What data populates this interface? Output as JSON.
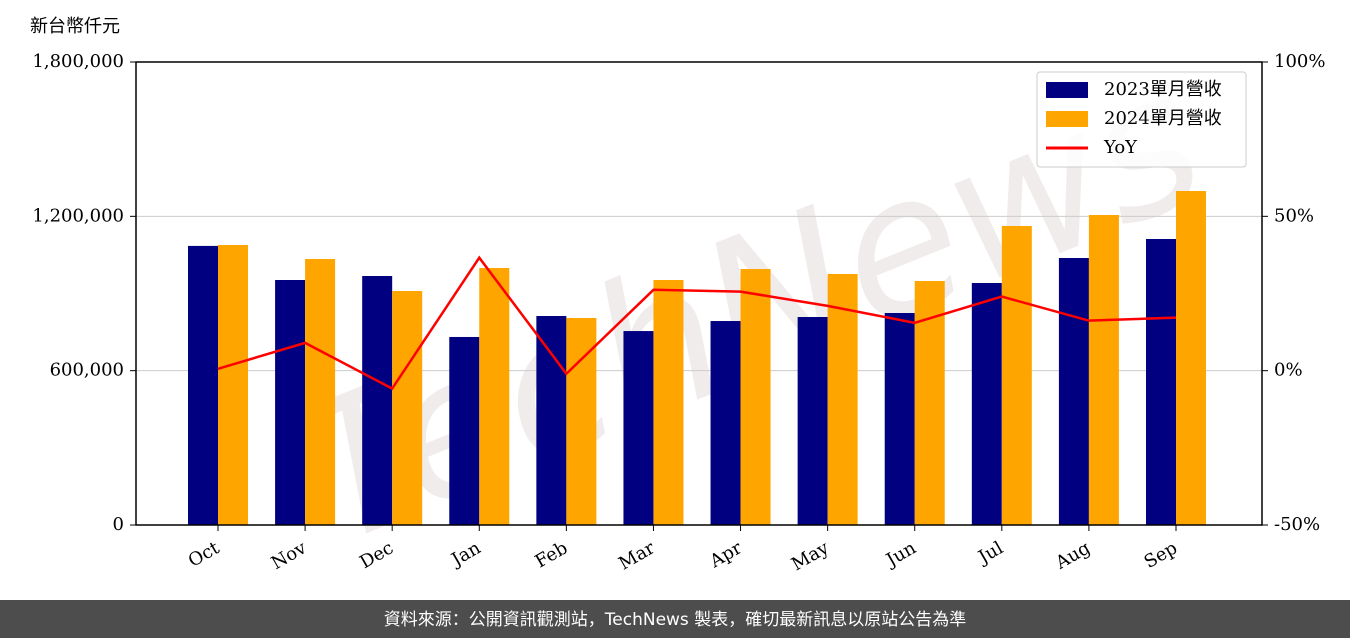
{
  "chart_data": {
    "type": "bar-line",
    "unit_label": "新台幣仟元",
    "watermark": "TechNews",
    "footer": "資料來源：公開資訊觀測站，TechNews 製表，確切最新訊息以原站公告為準",
    "categories": [
      "Oct",
      "Nov",
      "Dec",
      "Jan",
      "Feb",
      "Mar",
      "Apr",
      "May",
      "Jun",
      "Jul",
      "Aug",
      "Sep"
    ],
    "series": [
      {
        "name": "2023單月營收",
        "color": "#000080",
        "type": "bar",
        "values": [
          1085000,
          952500,
          968000,
          731000,
          812500,
          754000,
          793000,
          808600,
          824200,
          940800,
          1038000,
          1111900
        ]
      },
      {
        "name": "2024單月營收",
        "color": "#ffa500",
        "type": "bar",
        "values": [
          1088600,
          1034100,
          909700,
          999100,
          804800,
          952500,
          995200,
          975800,
          948600,
          1162400,
          1205200,
          1298500
        ]
      },
      {
        "name": "YoY",
        "color": "#ff0000",
        "type": "line",
        "axis": "y2",
        "values": [
          0.6,
          9,
          -5.8,
          36.6,
          -1,
          26.2,
          25.6,
          21,
          15.5,
          24,
          16.2,
          17.2
        ]
      }
    ],
    "ylim": [
      0,
      1800000
    ],
    "yticks": [
      0,
      {
        "value": 600000,
        "label": "600,000"
      },
      {
        "value": 1200000,
        "label": "1,200,000"
      },
      {
        "value": 1800000,
        "label": "1,800,000"
      }
    ],
    "y2lim": [
      -50,
      100
    ],
    "y2ticks": [
      {
        "value": -50,
        "label": "-50%"
      },
      {
        "value": 0,
        "label": "0%"
      },
      {
        "value": 50,
        "label": "50%"
      },
      {
        "value": 100,
        "label": "100%"
      }
    ],
    "grid": true,
    "legend": "upper right"
  }
}
